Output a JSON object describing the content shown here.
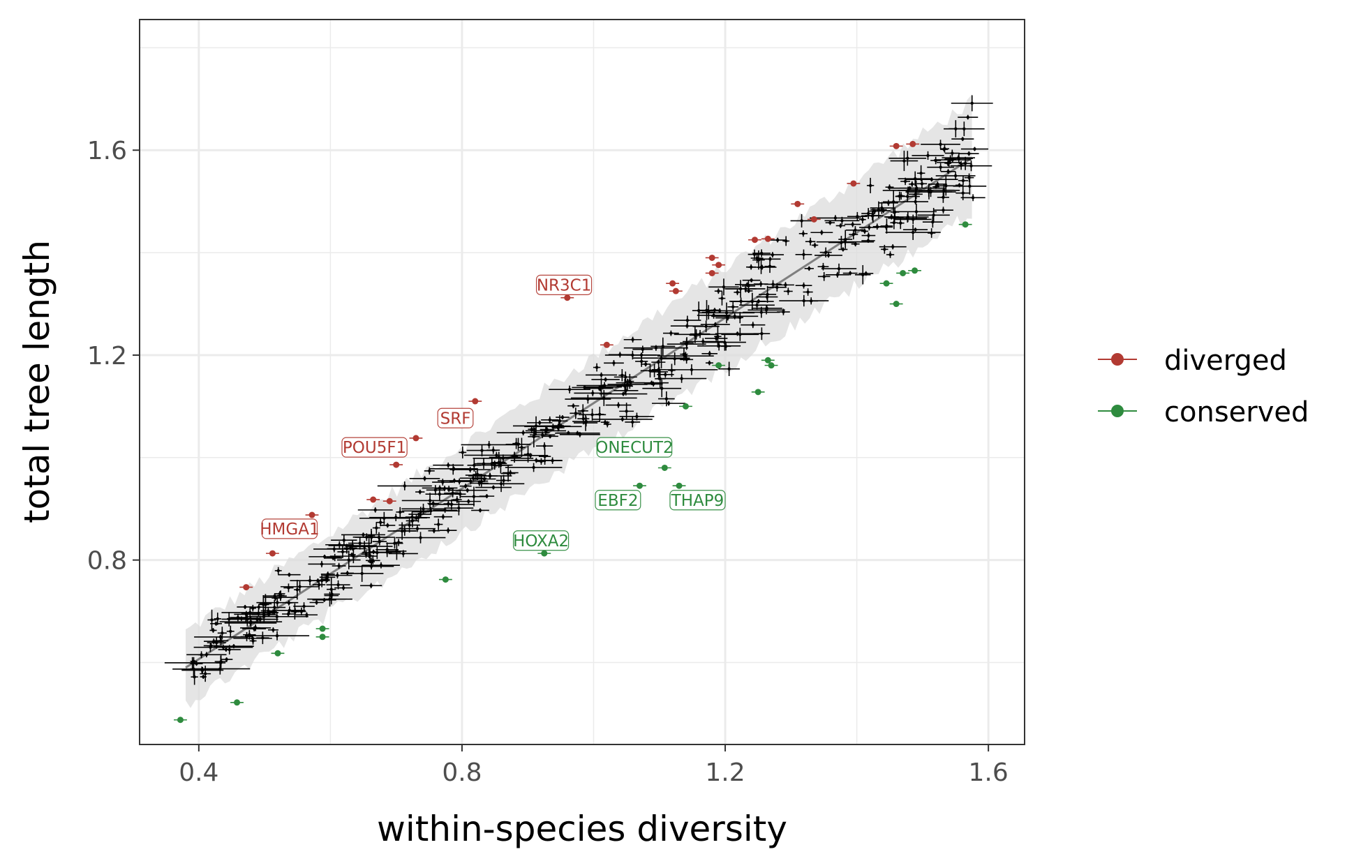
{
  "chart_data": {
    "type": "scatter",
    "xlabel": "within-species diversity",
    "ylabel": "total tree length",
    "xlim": [
      0.31,
      1.655
    ],
    "ylim": [
      0.44,
      1.855
    ],
    "x_ticks": [
      0.4,
      0.8,
      1.2,
      1.6
    ],
    "x_tick_labels": [
      "0.4",
      "0.8",
      "1.2",
      "1.6"
    ],
    "y_ticks": [
      0.8,
      1.2,
      1.6
    ],
    "y_tick_labels": [
      "0.8",
      "1.2",
      "1.6"
    ],
    "grid": true,
    "legend_position": "right",
    "colors": {
      "diverged": "#b23a32",
      "conserved": "#2e8b3e",
      "background": "#000000",
      "fit_line": "#7f7f7f",
      "ribbon": "#dcdcdc"
    },
    "fit_line": {
      "x": [
        0.38,
        1.575
      ],
      "y": [
        0.59,
        1.585
      ]
    },
    "legend": [
      {
        "key": "diverged",
        "label": "diverged"
      },
      {
        "key": "conserved",
        "label": "conserved"
      }
    ],
    "series": [
      {
        "name": "diverged",
        "points": [
          {
            "x": 0.472,
            "y": 0.747
          },
          {
            "x": 0.512,
            "y": 0.813
          },
          {
            "x": 0.572,
            "y": 0.888
          },
          {
            "x": 0.665,
            "y": 0.918
          },
          {
            "x": 0.69,
            "y": 0.915
          },
          {
            "x": 0.7,
            "y": 0.986
          },
          {
            "x": 0.73,
            "y": 1.038
          },
          {
            "x": 0.82,
            "y": 1.11
          },
          {
            "x": 0.96,
            "y": 1.312
          },
          {
            "x": 1.02,
            "y": 1.22
          },
          {
            "x": 1.12,
            "y": 1.34
          },
          {
            "x": 1.125,
            "y": 1.325
          },
          {
            "x": 1.18,
            "y": 1.39
          },
          {
            "x": 1.19,
            "y": 1.376
          },
          {
            "x": 1.18,
            "y": 1.36
          },
          {
            "x": 1.245,
            "y": 1.425
          },
          {
            "x": 1.265,
            "y": 1.427
          },
          {
            "x": 1.31,
            "y": 1.495
          },
          {
            "x": 1.335,
            "y": 1.465
          },
          {
            "x": 1.395,
            "y": 1.535
          },
          {
            "x": 1.46,
            "y": 1.608
          },
          {
            "x": 1.485,
            "y": 1.612
          }
        ]
      },
      {
        "name": "conserved",
        "points": [
          {
            "x": 0.372,
            "y": 0.488
          },
          {
            "x": 0.458,
            "y": 0.522
          },
          {
            "x": 0.52,
            "y": 0.618
          },
          {
            "x": 0.588,
            "y": 0.666
          },
          {
            "x": 0.588,
            "y": 0.65
          },
          {
            "x": 0.775,
            "y": 0.762
          },
          {
            "x": 0.925,
            "y": 0.813
          },
          {
            "x": 1.07,
            "y": 0.945
          },
          {
            "x": 1.108,
            "y": 0.98
          },
          {
            "x": 1.13,
            "y": 0.945
          },
          {
            "x": 1.14,
            "y": 1.1
          },
          {
            "x": 1.19,
            "y": 1.18
          },
          {
            "x": 1.25,
            "y": 1.128
          },
          {
            "x": 1.265,
            "y": 1.19
          },
          {
            "x": 1.27,
            "y": 1.18
          },
          {
            "x": 1.445,
            "y": 1.34
          },
          {
            "x": 1.46,
            "y": 1.3
          },
          {
            "x": 1.47,
            "y": 1.36
          },
          {
            "x": 1.488,
            "y": 1.365
          },
          {
            "x": 1.565,
            "y": 1.455
          }
        ]
      }
    ],
    "labels": [
      {
        "text": "NR3C1",
        "x": 0.955,
        "y": 1.337,
        "group": "diverged"
      },
      {
        "text": "SRF",
        "x": 0.79,
        "y": 1.077,
        "group": "diverged"
      },
      {
        "text": "POU5F1",
        "x": 0.667,
        "y": 1.02,
        "group": "diverged"
      },
      {
        "text": "HMGA1",
        "x": 0.538,
        "y": 0.861,
        "group": "diverged"
      },
      {
        "text": "ONECUT2",
        "x": 1.062,
        "y": 1.02,
        "group": "conserved"
      },
      {
        "text": "EBF2",
        "x": 1.037,
        "y": 0.917,
        "group": "conserved"
      },
      {
        "text": "THAP9",
        "x": 1.158,
        "y": 0.917,
        "group": "conserved"
      },
      {
        "text": "HOXA2",
        "x": 0.92,
        "y": 0.838,
        "group": "conserved"
      }
    ]
  }
}
